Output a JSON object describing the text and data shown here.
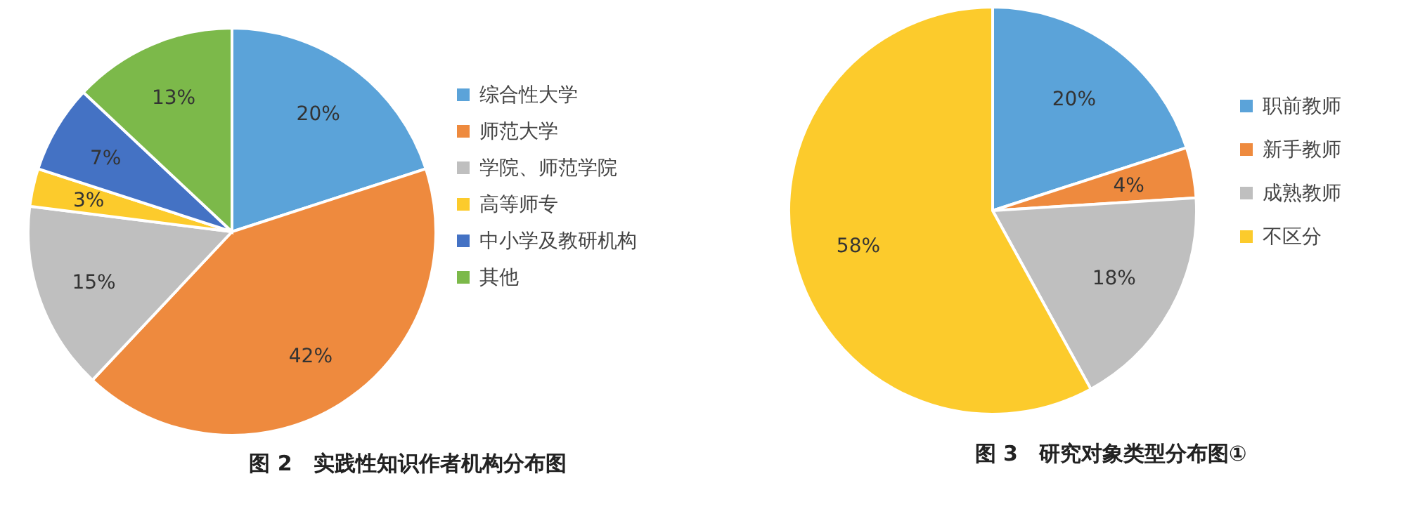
{
  "chart_data": [
    {
      "type": "pie",
      "title": "图 2　实践性知识作者机构分布图",
      "categories": [
        "综合性大学",
        "师范大学",
        "学院、师范学院",
        "高等师专",
        "中小学及教研机构",
        "其他"
      ],
      "values": [
        20,
        42,
        15,
        3,
        7,
        13
      ],
      "colors": [
        "#5ba3d9",
        "#ee8a3e",
        "#bfbfbf",
        "#fccb2c",
        "#4472c4",
        "#7cb94a"
      ],
      "value_labels": [
        "20%",
        "42%",
        "15%",
        "3%",
        "7%",
        "13%"
      ],
      "legend": "right"
    },
    {
      "type": "pie",
      "title": "图 3　研究对象类型分布图①",
      "categories": [
        "职前教师",
        "新手教师",
        "成熟教师",
        "不区分"
      ],
      "values": [
        20,
        4,
        18,
        58
      ],
      "colors": [
        "#5ba3d9",
        "#ee8a3e",
        "#bfbfbf",
        "#fccb2c"
      ],
      "value_labels": [
        "20%",
        "4%",
        "18%",
        "58%"
      ],
      "legend": "right"
    }
  ]
}
